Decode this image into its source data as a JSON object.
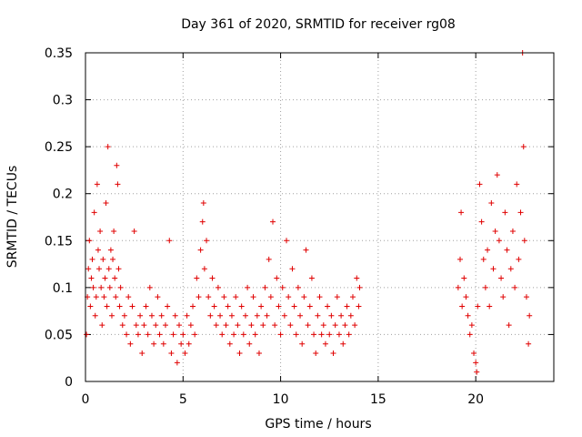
{
  "chart_data": {
    "type": "scatter",
    "title": "Day 361 of 2020, SRMTID for receiver rg08",
    "xlabel": "GPS time / hours",
    "ylabel": "SRMTID / TECUs",
    "xlim": [
      0,
      24
    ],
    "ylim": [
      0,
      0.35
    ],
    "xticks": [
      0,
      5,
      10,
      15,
      20
    ],
    "xtick_labels": [
      "0",
      "5",
      "10",
      "15",
      "20"
    ],
    "yticks": [
      0,
      0.05,
      0.1,
      0.15,
      0.2,
      0.25,
      0.3,
      0.35
    ],
    "ytick_labels": [
      "0",
      "0.05",
      "0.1",
      "0.15",
      "0.2",
      "0.25",
      "0.3",
      "0.35"
    ],
    "grid": true,
    "marker": "+",
    "color": "#e00000",
    "series": [
      {
        "name": "SRMTID",
        "points": [
          [
            0.05,
            0.05
          ],
          [
            0.1,
            0.09
          ],
          [
            0.15,
            0.12
          ],
          [
            0.2,
            0.15
          ],
          [
            0.25,
            0.08
          ],
          [
            0.3,
            0.11
          ],
          [
            0.35,
            0.13
          ],
          [
            0.4,
            0.1
          ],
          [
            0.45,
            0.18
          ],
          [
            0.5,
            0.07
          ],
          [
            0.55,
            0.09
          ],
          [
            0.6,
            0.21
          ],
          [
            0.65,
            0.14
          ],
          [
            0.7,
            0.12
          ],
          [
            0.75,
            0.16
          ],
          [
            0.8,
            0.1
          ],
          [
            0.85,
            0.06
          ],
          [
            0.9,
            0.13
          ],
          [
            0.95,
            0.09
          ],
          [
            1.0,
            0.11
          ],
          [
            1.05,
            0.19
          ],
          [
            1.1,
            0.08
          ],
          [
            1.15,
            0.25
          ],
          [
            1.2,
            0.12
          ],
          [
            1.25,
            0.1
          ],
          [
            1.3,
            0.14
          ],
          [
            1.35,
            0.07
          ],
          [
            1.4,
            0.13
          ],
          [
            1.45,
            0.16
          ],
          [
            1.5,
            0.11
          ],
          [
            1.55,
            0.09
          ],
          [
            1.6,
            0.23
          ],
          [
            1.65,
            0.21
          ],
          [
            1.7,
            0.12
          ],
          [
            1.75,
            0.08
          ],
          [
            1.8,
            0.1
          ],
          [
            1.9,
            0.06
          ],
          [
            2.0,
            0.07
          ],
          [
            2.1,
            0.05
          ],
          [
            2.2,
            0.09
          ],
          [
            2.3,
            0.04
          ],
          [
            2.4,
            0.08
          ],
          [
            2.5,
            0.16
          ],
          [
            2.6,
            0.06
          ],
          [
            2.7,
            0.05
          ],
          [
            2.8,
            0.07
          ],
          [
            2.9,
            0.03
          ],
          [
            3.0,
            0.06
          ],
          [
            3.1,
            0.08
          ],
          [
            3.2,
            0.05
          ],
          [
            3.3,
            0.1
          ],
          [
            3.4,
            0.07
          ],
          [
            3.5,
            0.04
          ],
          [
            3.6,
            0.06
          ],
          [
            3.7,
            0.09
          ],
          [
            3.8,
            0.05
          ],
          [
            3.9,
            0.07
          ],
          [
            4.0,
            0.04
          ],
          [
            4.1,
            0.06
          ],
          [
            4.2,
            0.08
          ],
          [
            4.3,
            0.15
          ],
          [
            4.4,
            0.03
          ],
          [
            4.5,
            0.05
          ],
          [
            4.6,
            0.07
          ],
          [
            4.7,
            0.02
          ],
          [
            4.8,
            0.06
          ],
          [
            4.9,
            0.04
          ],
          [
            5.0,
            0.05
          ],
          [
            5.1,
            0.03
          ],
          [
            5.2,
            0.07
          ],
          [
            5.3,
            0.04
          ],
          [
            5.4,
            0.06
          ],
          [
            5.5,
            0.08
          ],
          [
            5.6,
            0.05
          ],
          [
            5.7,
            0.11
          ],
          [
            5.8,
            0.09
          ],
          [
            5.9,
            0.14
          ],
          [
            6.0,
            0.17
          ],
          [
            6.05,
            0.19
          ],
          [
            6.1,
            0.12
          ],
          [
            6.2,
            0.15
          ],
          [
            6.3,
            0.09
          ],
          [
            6.4,
            0.07
          ],
          [
            6.5,
            0.11
          ],
          [
            6.6,
            0.08
          ],
          [
            6.7,
            0.06
          ],
          [
            6.8,
            0.1
          ],
          [
            6.9,
            0.07
          ],
          [
            7.0,
            0.05
          ],
          [
            7.1,
            0.09
          ],
          [
            7.2,
            0.06
          ],
          [
            7.3,
            0.08
          ],
          [
            7.4,
            0.04
          ],
          [
            7.5,
            0.07
          ],
          [
            7.6,
            0.05
          ],
          [
            7.7,
            0.09
          ],
          [
            7.8,
            0.06
          ],
          [
            7.9,
            0.03
          ],
          [
            8.0,
            0.08
          ],
          [
            8.1,
            0.05
          ],
          [
            8.2,
            0.07
          ],
          [
            8.3,
            0.1
          ],
          [
            8.4,
            0.04
          ],
          [
            8.5,
            0.06
          ],
          [
            8.6,
            0.09
          ],
          [
            8.7,
            0.05
          ],
          [
            8.8,
            0.07
          ],
          [
            8.9,
            0.03
          ],
          [
            9.0,
            0.08
          ],
          [
            9.1,
            0.06
          ],
          [
            9.2,
            0.1
          ],
          [
            9.3,
            0.07
          ],
          [
            9.4,
            0.13
          ],
          [
            9.5,
            0.09
          ],
          [
            9.6,
            0.17
          ],
          [
            9.7,
            0.06
          ],
          [
            9.8,
            0.11
          ],
          [
            9.9,
            0.08
          ],
          [
            10.0,
            0.05
          ],
          [
            10.1,
            0.1
          ],
          [
            10.2,
            0.07
          ],
          [
            10.3,
            0.15
          ],
          [
            10.4,
            0.09
          ],
          [
            10.5,
            0.06
          ],
          [
            10.6,
            0.12
          ],
          [
            10.7,
            0.08
          ],
          [
            10.8,
            0.05
          ],
          [
            10.9,
            0.1
          ],
          [
            11.0,
            0.07
          ],
          [
            11.1,
            0.04
          ],
          [
            11.2,
            0.09
          ],
          [
            11.3,
            0.14
          ],
          [
            11.4,
            0.06
          ],
          [
            11.5,
            0.08
          ],
          [
            11.6,
            0.11
          ],
          [
            11.7,
            0.05
          ],
          [
            11.8,
            0.03
          ],
          [
            11.9,
            0.07
          ],
          [
            12.0,
            0.09
          ],
          [
            12.1,
            0.05
          ],
          [
            12.2,
            0.06
          ],
          [
            12.3,
            0.04
          ],
          [
            12.4,
            0.08
          ],
          [
            12.5,
            0.05
          ],
          [
            12.6,
            0.07
          ],
          [
            12.7,
            0.03
          ],
          [
            12.8,
            0.06
          ],
          [
            12.9,
            0.09
          ],
          [
            13.0,
            0.05
          ],
          [
            13.1,
            0.07
          ],
          [
            13.2,
            0.04
          ],
          [
            13.3,
            0.06
          ],
          [
            13.4,
            0.08
          ],
          [
            13.5,
            0.05
          ],
          [
            13.6,
            0.07
          ],
          [
            13.7,
            0.09
          ],
          [
            13.8,
            0.06
          ],
          [
            13.9,
            0.11
          ],
          [
            14.0,
            0.08
          ],
          [
            14.05,
            0.1
          ],
          [
            19.1,
            0.1
          ],
          [
            19.2,
            0.13
          ],
          [
            19.25,
            0.18
          ],
          [
            19.3,
            0.08
          ],
          [
            19.4,
            0.11
          ],
          [
            19.5,
            0.09
          ],
          [
            19.6,
            0.07
          ],
          [
            19.7,
            0.05
          ],
          [
            19.8,
            0.06
          ],
          [
            19.9,
            0.03
          ],
          [
            20.0,
            0.02
          ],
          [
            20.05,
            0.01
          ],
          [
            20.1,
            0.08
          ],
          [
            20.2,
            0.21
          ],
          [
            20.3,
            0.17
          ],
          [
            20.4,
            0.13
          ],
          [
            20.5,
            0.1
          ],
          [
            20.6,
            0.14
          ],
          [
            20.7,
            0.08
          ],
          [
            20.8,
            0.19
          ],
          [
            20.9,
            0.12
          ],
          [
            21.0,
            0.16
          ],
          [
            21.1,
            0.22
          ],
          [
            21.2,
            0.15
          ],
          [
            21.3,
            0.11
          ],
          [
            21.4,
            0.09
          ],
          [
            21.5,
            0.18
          ],
          [
            21.6,
            0.14
          ],
          [
            21.7,
            0.06
          ],
          [
            21.8,
            0.12
          ],
          [
            21.9,
            0.16
          ],
          [
            22.0,
            0.1
          ],
          [
            22.1,
            0.21
          ],
          [
            22.2,
            0.13
          ],
          [
            22.3,
            0.18
          ],
          [
            22.4,
            0.35
          ],
          [
            22.45,
            0.25
          ],
          [
            22.5,
            0.15
          ],
          [
            22.6,
            0.09
          ],
          [
            22.7,
            0.04
          ],
          [
            22.75,
            0.07
          ]
        ]
      }
    ]
  }
}
